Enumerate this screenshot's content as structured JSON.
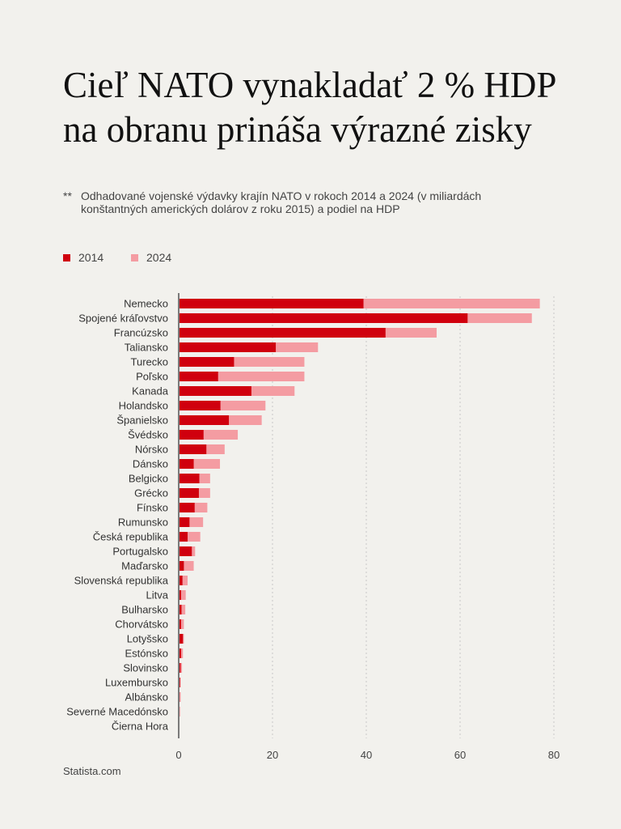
{
  "header": {
    "title_line1": "Cieľ NATO vynakladať 2 % HDP",
    "title_line2": "na obranu prináša výrazné zisky",
    "subtitle_mark": "**",
    "subtitle": "Odhadované vojenské výdavky krajín NATO v rokoch 2014 a 2024 (v miliardách konštantných amerických dolárov z roku 2015) a podiel na HDP"
  },
  "footer": {
    "source": "Statista.com"
  },
  "colors": {
    "s2014": "#d0000e",
    "s2024": "#f49ca2",
    "axis": "#7a7a7a",
    "grid": "#c8c8c8",
    "background": "#f2f1ed"
  },
  "chart_data": {
    "type": "bar",
    "orientation": "horizontal",
    "stacked_overlay": true,
    "title": "Cieľ NATO vynakladať 2 % HDP na obranu prináša výrazné zisky",
    "xlabel": "",
    "ylabel": "",
    "xlim": [
      0,
      80
    ],
    "xticks": [
      0,
      20,
      40,
      60,
      80
    ],
    "grid": true,
    "legend_position": "top-left",
    "categories": [
      "Nemecko",
      "Spojené kráľovstvo",
      "Francúzsko",
      "Taliansko",
      "Turecko",
      "Poľsko",
      "Kanada",
      "Holandsko",
      "Španielsko",
      "Švédsko",
      "Nórsko",
      "Dánsko",
      "Belgicko",
      "Grécko",
      "Fínsko",
      "Rumunsko",
      "Česká republika",
      "Portugalsko",
      "Maďarsko",
      "Slovenská republika",
      "Litva",
      "Bulharsko",
      "Chorvátsko",
      "Lotyšsko",
      "Estónsko",
      "Slovinsko",
      "Luxembursko",
      "Albánsko",
      "Severné Macedónsko",
      "Čierna Hora"
    ],
    "series": [
      {
        "name": "2014",
        "values": [
          39.4,
          61.6,
          44.1,
          20.7,
          11.8,
          8.4,
          15.5,
          8.9,
          10.7,
          5.3,
          5.9,
          3.2,
          4.4,
          4.3,
          3.4,
          2.3,
          1.9,
          2.8,
          1.1,
          0.8,
          0.5,
          0.6,
          0.5,
          0.9,
          0.5,
          0.4,
          0.3,
          0.2,
          0.1,
          0.1
        ]
      },
      {
        "name": "2024",
        "values": [
          77.0,
          75.3,
          55.0,
          29.7,
          26.8,
          26.8,
          24.7,
          18.5,
          17.7,
          12.6,
          9.8,
          8.8,
          6.7,
          6.7,
          6.1,
          5.2,
          4.6,
          3.5,
          3.2,
          1.9,
          1.5,
          1.4,
          1.1,
          1.1,
          0.9,
          0.7,
          0.4,
          0.4,
          0.3,
          0.1
        ]
      }
    ]
  }
}
